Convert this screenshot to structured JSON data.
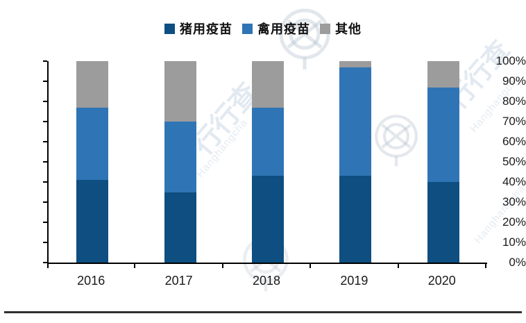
{
  "page": {
    "background": "#ffffff"
  },
  "legend": {
    "items": [
      {
        "label": "猪用疫苗",
        "color": "#0E4E80"
      },
      {
        "label": "禽用疫苗",
        "color": "#2F75B5"
      },
      {
        "label": "其他",
        "color": "#9C9C9C"
      }
    ]
  },
  "chart_data": {
    "type": "bar",
    "stacked": true,
    "stack_mode": "percent",
    "title": "",
    "xlabel": "",
    "ylabel": "",
    "categories": [
      "2016",
      "2017",
      "2018",
      "2019",
      "2020"
    ],
    "series": [
      {
        "name": "猪用疫苗",
        "color": "#0E4E80",
        "values": [
          41,
          35,
          43,
          43,
          40
        ]
      },
      {
        "name": "禽用疫苗",
        "color": "#2F75B5",
        "values": [
          36,
          35,
          34,
          54,
          47
        ]
      },
      {
        "name": "其他",
        "color": "#9C9C9C",
        "values": [
          23,
          30,
          23,
          3,
          13
        ]
      }
    ],
    "ylim": [
      0,
      100
    ],
    "ytick_step": 10,
    "ytick_labels": [
      "0%",
      "10%",
      "20%",
      "30%",
      "40%",
      "50%",
      "60%",
      "70%",
      "80%",
      "90%",
      "100%"
    ],
    "grid": false,
    "legend_position": "top"
  },
  "watermark": {
    "text": "行行查",
    "latin": "Hanghangcha"
  }
}
